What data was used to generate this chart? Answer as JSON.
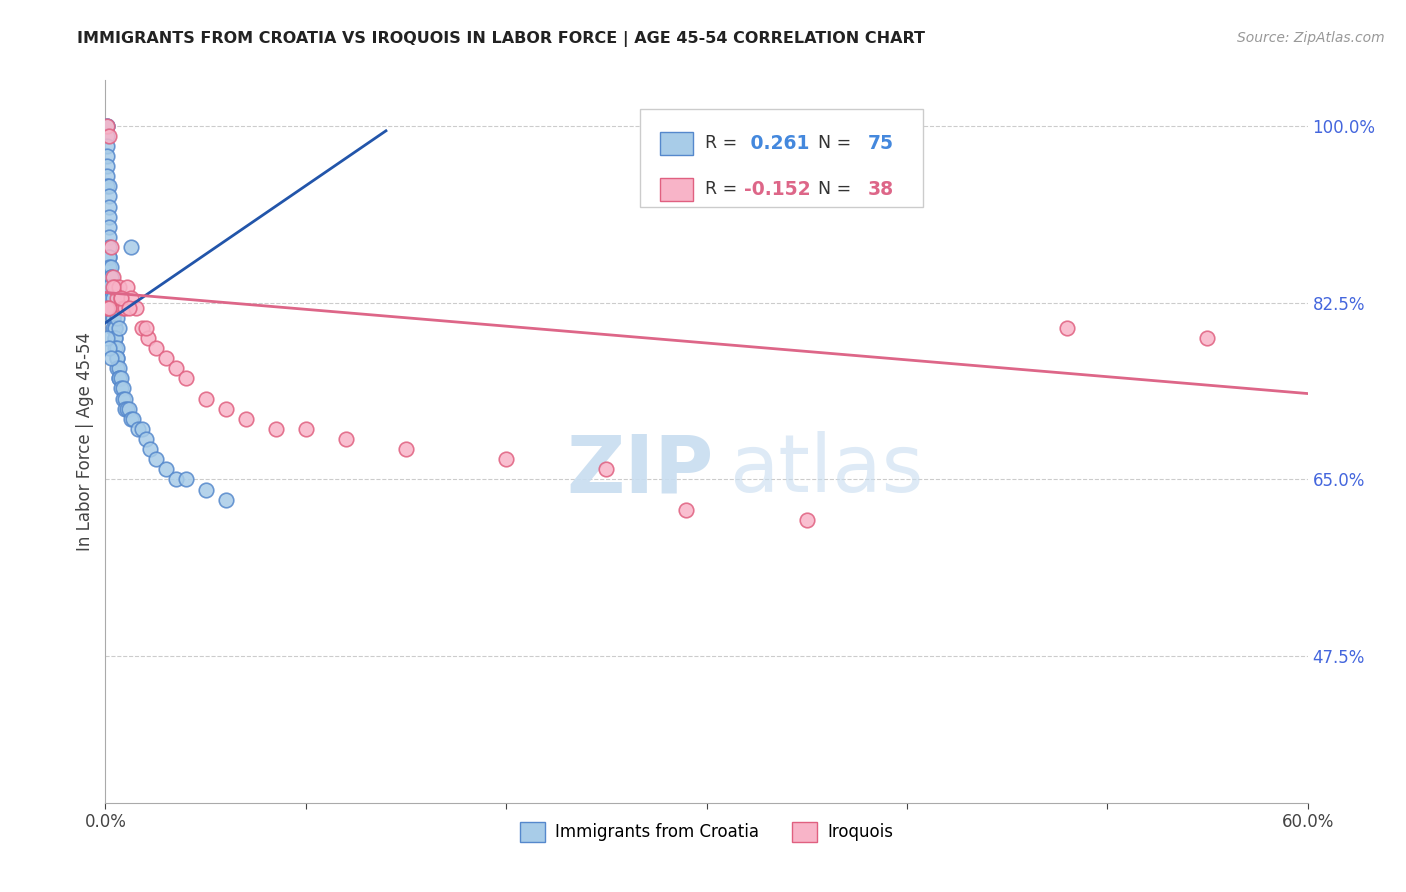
{
  "title": "IMMIGRANTS FROM CROATIA VS IROQUOIS IN LABOR FORCE | AGE 45-54 CORRELATION CHART",
  "source": "Source: ZipAtlas.com",
  "ylabel": "In Labor Force | Age 45-54",
  "xlim": [
    0.0,
    0.6
  ],
  "ylim": [
    0.33,
    1.045
  ],
  "xticks": [
    0.0,
    0.1,
    0.2,
    0.3,
    0.4,
    0.5,
    0.6
  ],
  "xticklabels": [
    "0.0%",
    "",
    "",
    "",
    "",
    "",
    "60.0%"
  ],
  "yticks_right": [
    1.0,
    0.825,
    0.65,
    0.475
  ],
  "ytick_labels_right": [
    "100.0%",
    "82.5%",
    "65.0%",
    "47.5%"
  ],
  "blue_R": 0.261,
  "blue_N": 75,
  "pink_R": -0.152,
  "pink_N": 38,
  "blue_color": "#a8cce8",
  "pink_color": "#f8b4c8",
  "blue_edge_color": "#5588cc",
  "pink_edge_color": "#e06080",
  "blue_line_color": "#2255aa",
  "pink_line_color": "#dd6688",
  "legend_blue_label": "Immigrants from Croatia",
  "legend_pink_label": "Iroquois",
  "blue_label_color": "#4488dd",
  "pink_label_color": "#dd6688",
  "right_axis_color": "#4466dd",
  "blue_x": [
    0.001,
    0.001,
    0.001,
    0.001,
    0.001,
    0.001,
    0.001,
    0.001,
    0.002,
    0.002,
    0.002,
    0.002,
    0.002,
    0.002,
    0.002,
    0.002,
    0.002,
    0.002,
    0.003,
    0.003,
    0.003,
    0.003,
    0.003,
    0.003,
    0.003,
    0.004,
    0.004,
    0.004,
    0.004,
    0.004,
    0.004,
    0.004,
    0.005,
    0.005,
    0.005,
    0.005,
    0.005,
    0.006,
    0.006,
    0.006,
    0.006,
    0.007,
    0.007,
    0.007,
    0.008,
    0.008,
    0.009,
    0.009,
    0.01,
    0.01,
    0.011,
    0.012,
    0.013,
    0.014,
    0.016,
    0.018,
    0.02,
    0.022,
    0.025,
    0.03,
    0.035,
    0.04,
    0.05,
    0.06,
    0.001,
    0.001,
    0.013,
    0.002,
    0.003,
    0.004,
    0.005,
    0.006,
    0.007,
    0.002,
    0.003
  ],
  "blue_y": [
    1.0,
    1.0,
    0.99,
    0.98,
    0.97,
    0.96,
    0.95,
    0.94,
    0.94,
    0.93,
    0.92,
    0.91,
    0.9,
    0.89,
    0.88,
    0.87,
    0.87,
    0.86,
    0.86,
    0.85,
    0.85,
    0.84,
    0.84,
    0.83,
    0.83,
    0.83,
    0.82,
    0.82,
    0.82,
    0.81,
    0.81,
    0.8,
    0.8,
    0.8,
    0.79,
    0.79,
    0.78,
    0.78,
    0.77,
    0.77,
    0.76,
    0.76,
    0.75,
    0.75,
    0.75,
    0.74,
    0.74,
    0.73,
    0.73,
    0.72,
    0.72,
    0.72,
    0.71,
    0.71,
    0.7,
    0.7,
    0.69,
    0.68,
    0.67,
    0.66,
    0.65,
    0.65,
    0.64,
    0.63,
    0.82,
    0.79,
    0.88,
    0.84,
    0.83,
    0.83,
    0.82,
    0.81,
    0.8,
    0.78,
    0.77
  ],
  "pink_x": [
    0.001,
    0.002,
    0.003,
    0.004,
    0.005,
    0.006,
    0.007,
    0.008,
    0.009,
    0.01,
    0.011,
    0.013,
    0.015,
    0.018,
    0.021,
    0.025,
    0.03,
    0.035,
    0.04,
    0.05,
    0.06,
    0.07,
    0.085,
    0.1,
    0.12,
    0.15,
    0.2,
    0.25,
    0.29,
    0.35,
    0.001,
    0.002,
    0.004,
    0.008,
    0.012,
    0.02,
    0.48,
    0.55
  ],
  "pink_y": [
    1.0,
    0.99,
    0.88,
    0.85,
    0.84,
    0.83,
    0.84,
    0.83,
    0.82,
    0.82,
    0.84,
    0.83,
    0.82,
    0.8,
    0.79,
    0.78,
    0.77,
    0.76,
    0.75,
    0.73,
    0.72,
    0.71,
    0.7,
    0.7,
    0.69,
    0.68,
    0.67,
    0.66,
    0.62,
    0.61,
    0.82,
    0.82,
    0.84,
    0.83,
    0.82,
    0.8,
    0.8,
    0.79
  ],
  "blue_trend_x": [
    0.0,
    0.14
  ],
  "blue_trend_y": [
    0.805,
    0.995
  ],
  "pink_trend_x": [
    0.0,
    0.6
  ],
  "pink_trend_y": [
    0.835,
    0.735
  ]
}
